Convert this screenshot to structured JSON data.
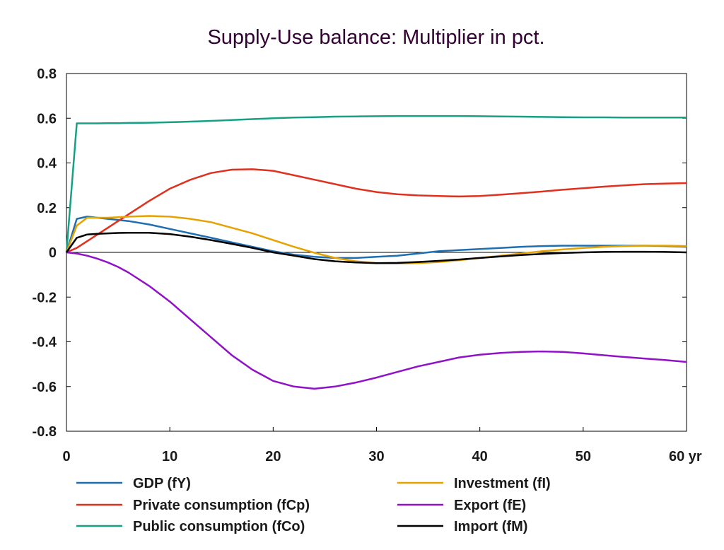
{
  "chart_data": {
    "type": "line",
    "title": "Supply-Use balance: Multiplier in pct.",
    "xlabel": "",
    "ylabel": "",
    "x_unit_label": "yr",
    "xlim": [
      0,
      60
    ],
    "ylim": [
      -0.8,
      0.8
    ],
    "x_ticks": [
      0,
      10,
      20,
      30,
      40,
      50,
      60
    ],
    "x_tick_labels": [
      "0",
      "10",
      "20",
      "30",
      "40",
      "50",
      "60 yr"
    ],
    "y_ticks": [
      -0.8,
      -0.6,
      -0.4,
      -0.2,
      0,
      0.2,
      0.4,
      0.6,
      0.8
    ],
    "y_tick_labels": [
      "-0.8",
      "-0.6",
      "-0.4",
      "-0.2",
      "0",
      "0.2",
      "0.4",
      "0.6",
      "0.8"
    ],
    "grid": false,
    "zero_line": true,
    "legend_position": "bottom",
    "x": [
      0,
      1,
      2,
      3,
      4,
      5,
      6,
      8,
      10,
      12,
      14,
      16,
      18,
      20,
      22,
      24,
      26,
      28,
      30,
      32,
      34,
      36,
      38,
      40,
      42,
      44,
      46,
      48,
      50,
      52,
      54,
      56,
      58,
      60
    ],
    "series": [
      {
        "name": "GDP (fY)",
        "color": "#1f6fb0",
        "values": [
          0,
          0.15,
          0.16,
          0.155,
          0.15,
          0.145,
          0.14,
          0.125,
          0.105,
          0.085,
          0.065,
          0.045,
          0.025,
          0.005,
          -0.01,
          -0.02,
          -0.025,
          -0.025,
          -0.02,
          -0.015,
          -0.005,
          0.005,
          0.01,
          0.015,
          0.02,
          0.025,
          0.028,
          0.03,
          0.03,
          0.03,
          0.03,
          0.03,
          0.028,
          0.025
        ]
      },
      {
        "name": "Private consumption (fCp)",
        "color": "#e0301e",
        "values": [
          0,
          0.02,
          0.05,
          0.08,
          0.11,
          0.14,
          0.17,
          0.23,
          0.285,
          0.325,
          0.355,
          0.37,
          0.372,
          0.365,
          0.345,
          0.325,
          0.305,
          0.285,
          0.27,
          0.26,
          0.255,
          0.252,
          0.25,
          0.252,
          0.258,
          0.265,
          0.272,
          0.28,
          0.287,
          0.294,
          0.3,
          0.305,
          0.308,
          0.31
        ]
      },
      {
        "name": "Public consumption (fCo)",
        "color": "#16a085",
        "values": [
          0,
          0.577,
          0.577,
          0.577,
          0.578,
          0.578,
          0.579,
          0.58,
          0.582,
          0.585,
          0.588,
          0.592,
          0.596,
          0.6,
          0.603,
          0.605,
          0.607,
          0.608,
          0.609,
          0.61,
          0.61,
          0.61,
          0.61,
          0.609,
          0.608,
          0.607,
          0.606,
          0.605,
          0.604,
          0.604,
          0.603,
          0.603,
          0.603,
          0.603
        ]
      },
      {
        "name": "Investment (fI)",
        "color": "#e6a200",
        "values": [
          0,
          0.12,
          0.155,
          0.155,
          0.155,
          0.157,
          0.16,
          0.163,
          0.16,
          0.15,
          0.135,
          0.11,
          0.085,
          0.055,
          0.025,
          -0.002,
          -0.025,
          -0.04,
          -0.048,
          -0.05,
          -0.048,
          -0.043,
          -0.035,
          -0.025,
          -0.015,
          -0.005,
          0.005,
          0.013,
          0.02,
          0.025,
          0.028,
          0.03,
          0.03,
          0.028
        ]
      },
      {
        "name": "Export (fE)",
        "color": "#9012c8",
        "values": [
          0,
          -0.005,
          -0.015,
          -0.028,
          -0.045,
          -0.065,
          -0.09,
          -0.15,
          -0.22,
          -0.3,
          -0.38,
          -0.46,
          -0.525,
          -0.575,
          -0.6,
          -0.61,
          -0.6,
          -0.582,
          -0.56,
          -0.535,
          -0.51,
          -0.49,
          -0.47,
          -0.458,
          -0.45,
          -0.445,
          -0.443,
          -0.445,
          -0.452,
          -0.46,
          -0.468,
          -0.475,
          -0.482,
          -0.49
        ]
      },
      {
        "name": "Import (fM)",
        "color": "#000000",
        "values": [
          0,
          0.065,
          0.08,
          0.083,
          0.085,
          0.087,
          0.088,
          0.088,
          0.082,
          0.07,
          0.055,
          0.038,
          0.02,
          0.0,
          -0.015,
          -0.03,
          -0.04,
          -0.045,
          -0.048,
          -0.047,
          -0.043,
          -0.038,
          -0.032,
          -0.025,
          -0.018,
          -0.012,
          -0.007,
          -0.003,
          0.0,
          0.002,
          0.003,
          0.003,
          0.002,
          0.0
        ]
      }
    ]
  }
}
